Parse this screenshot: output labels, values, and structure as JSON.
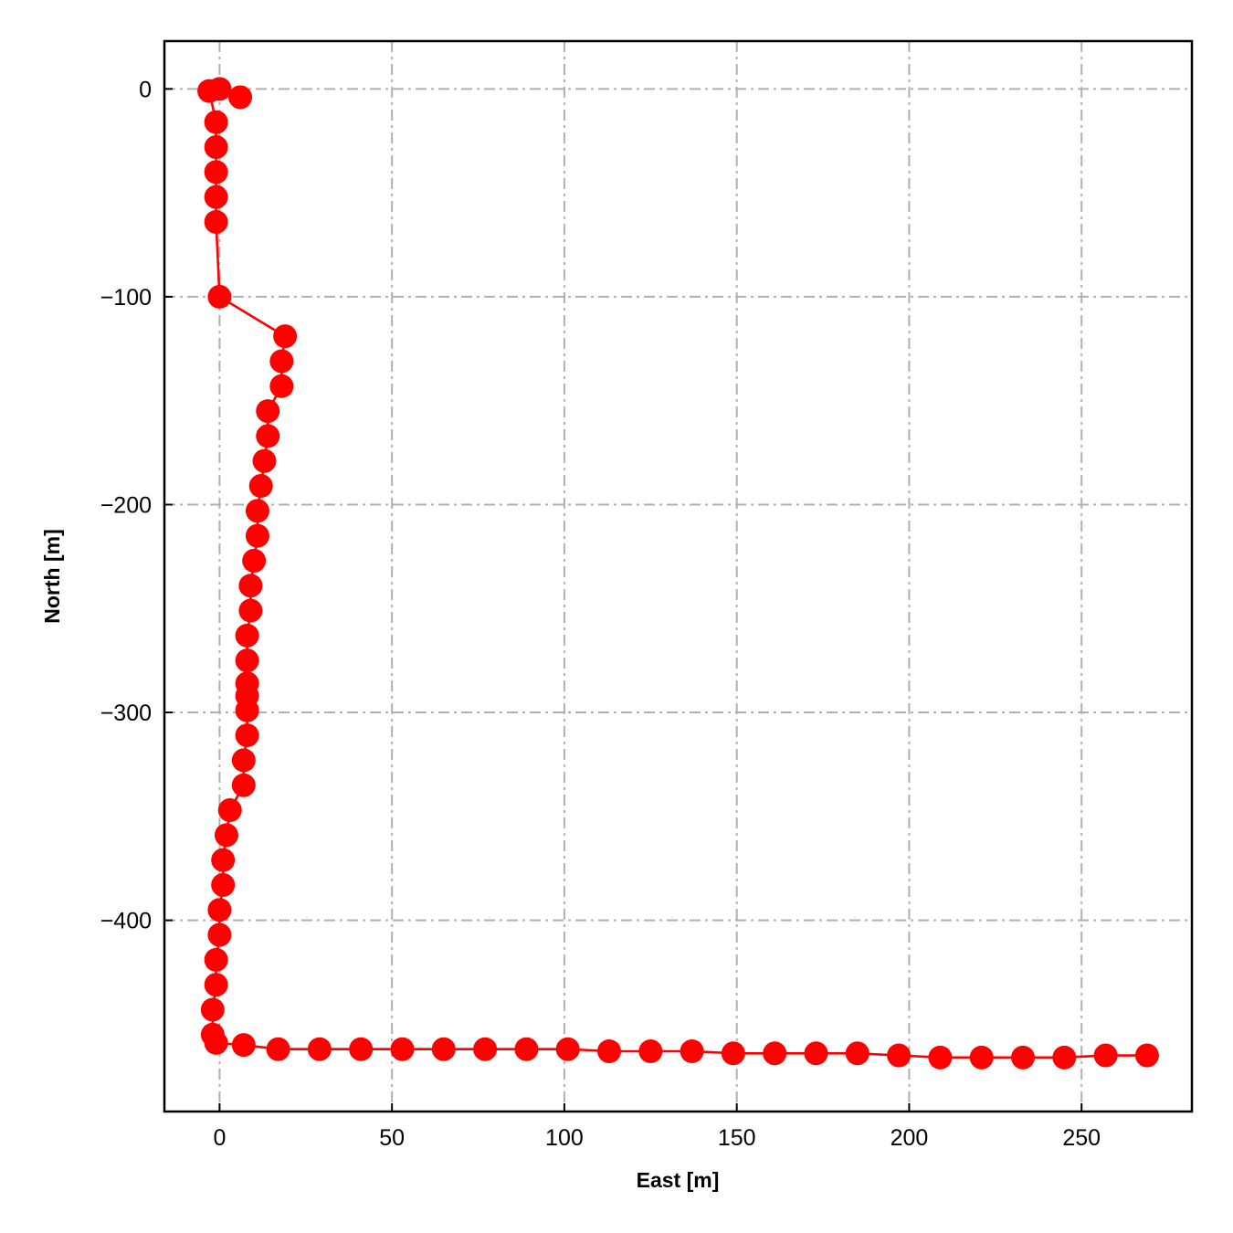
{
  "chart_data": {
    "type": "line",
    "xlabel": "East [m]",
    "ylabel": "North [m]",
    "xlim": [
      -16,
      282
    ],
    "ylim": [
      -492,
      23
    ],
    "xticks": [
      0,
      50,
      100,
      150,
      200,
      250
    ],
    "yticks": [
      0,
      -100,
      -200,
      -300,
      -400
    ],
    "xtick_labels": [
      "0",
      "50",
      "100",
      "150",
      "200",
      "250"
    ],
    "ytick_labels": [
      "0",
      "−100",
      "−200",
      "−300",
      "−400"
    ],
    "grid": true,
    "grid_style": "dash-dot",
    "colors": {
      "series": "#ff0000",
      "grid": "#b0b0b0"
    },
    "series": [
      {
        "marker": "circle",
        "x": [
          0,
          6,
          -3,
          -1,
          -1,
          -1,
          -1,
          -1,
          0,
          19,
          18,
          18,
          14,
          14,
          13,
          12,
          11,
          11,
          10,
          9,
          9,
          8,
          8,
          8,
          8,
          8,
          8,
          7,
          7,
          3,
          2,
          1,
          1,
          0,
          0,
          -1,
          -1,
          -2,
          -2,
          -1,
          7,
          17,
          29,
          41,
          53,
          65,
          77,
          89,
          101,
          113,
          125,
          137,
          149,
          161,
          173,
          185,
          197,
          209,
          221,
          233,
          245,
          257,
          269
        ],
        "y": [
          0,
          -4,
          -1,
          -16,
          -28,
          -40,
          -52,
          -64,
          -100,
          -119,
          -131,
          -143,
          -155,
          -167,
          -179,
          -191,
          -203,
          -215,
          -227,
          -239,
          -251,
          -263,
          -275,
          -286,
          -292,
          -299,
          -311,
          -323,
          -335,
          -347,
          -359,
          -371,
          -383,
          -395,
          -407,
          -419,
          -431,
          -443,
          -455,
          -459,
          -460,
          -462,
          -462,
          -462,
          -462,
          -462,
          -462,
          -462,
          -462,
          -463,
          -463,
          -463,
          -464,
          -464,
          -464,
          -464,
          -465,
          -466,
          -466,
          -466,
          -466,
          -465,
          -465
        ]
      }
    ]
  }
}
